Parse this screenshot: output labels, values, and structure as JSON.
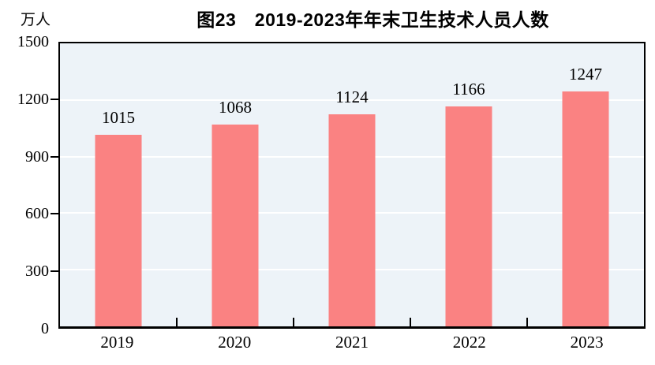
{
  "chart_data": {
    "type": "bar",
    "title": "图23　2019-2023年年末卫生技术人员人数",
    "unit": "万人",
    "categories": [
      "2019",
      "2020",
      "2021",
      "2022",
      "2023"
    ],
    "values": [
      1015,
      1068,
      1124,
      1166,
      1247
    ],
    "xlabel": "",
    "ylabel": "万人",
    "ylim": [
      0,
      1500
    ],
    "yticks": [
      0,
      300,
      600,
      900,
      1200,
      1500
    ],
    "grid": "horizontal",
    "legend": "none",
    "colors": {
      "bar": "#FA8282",
      "plot_background": "#EDF3F8",
      "gridline": "#FFFFFF",
      "axis": "#000000",
      "text": "#000000"
    }
  }
}
